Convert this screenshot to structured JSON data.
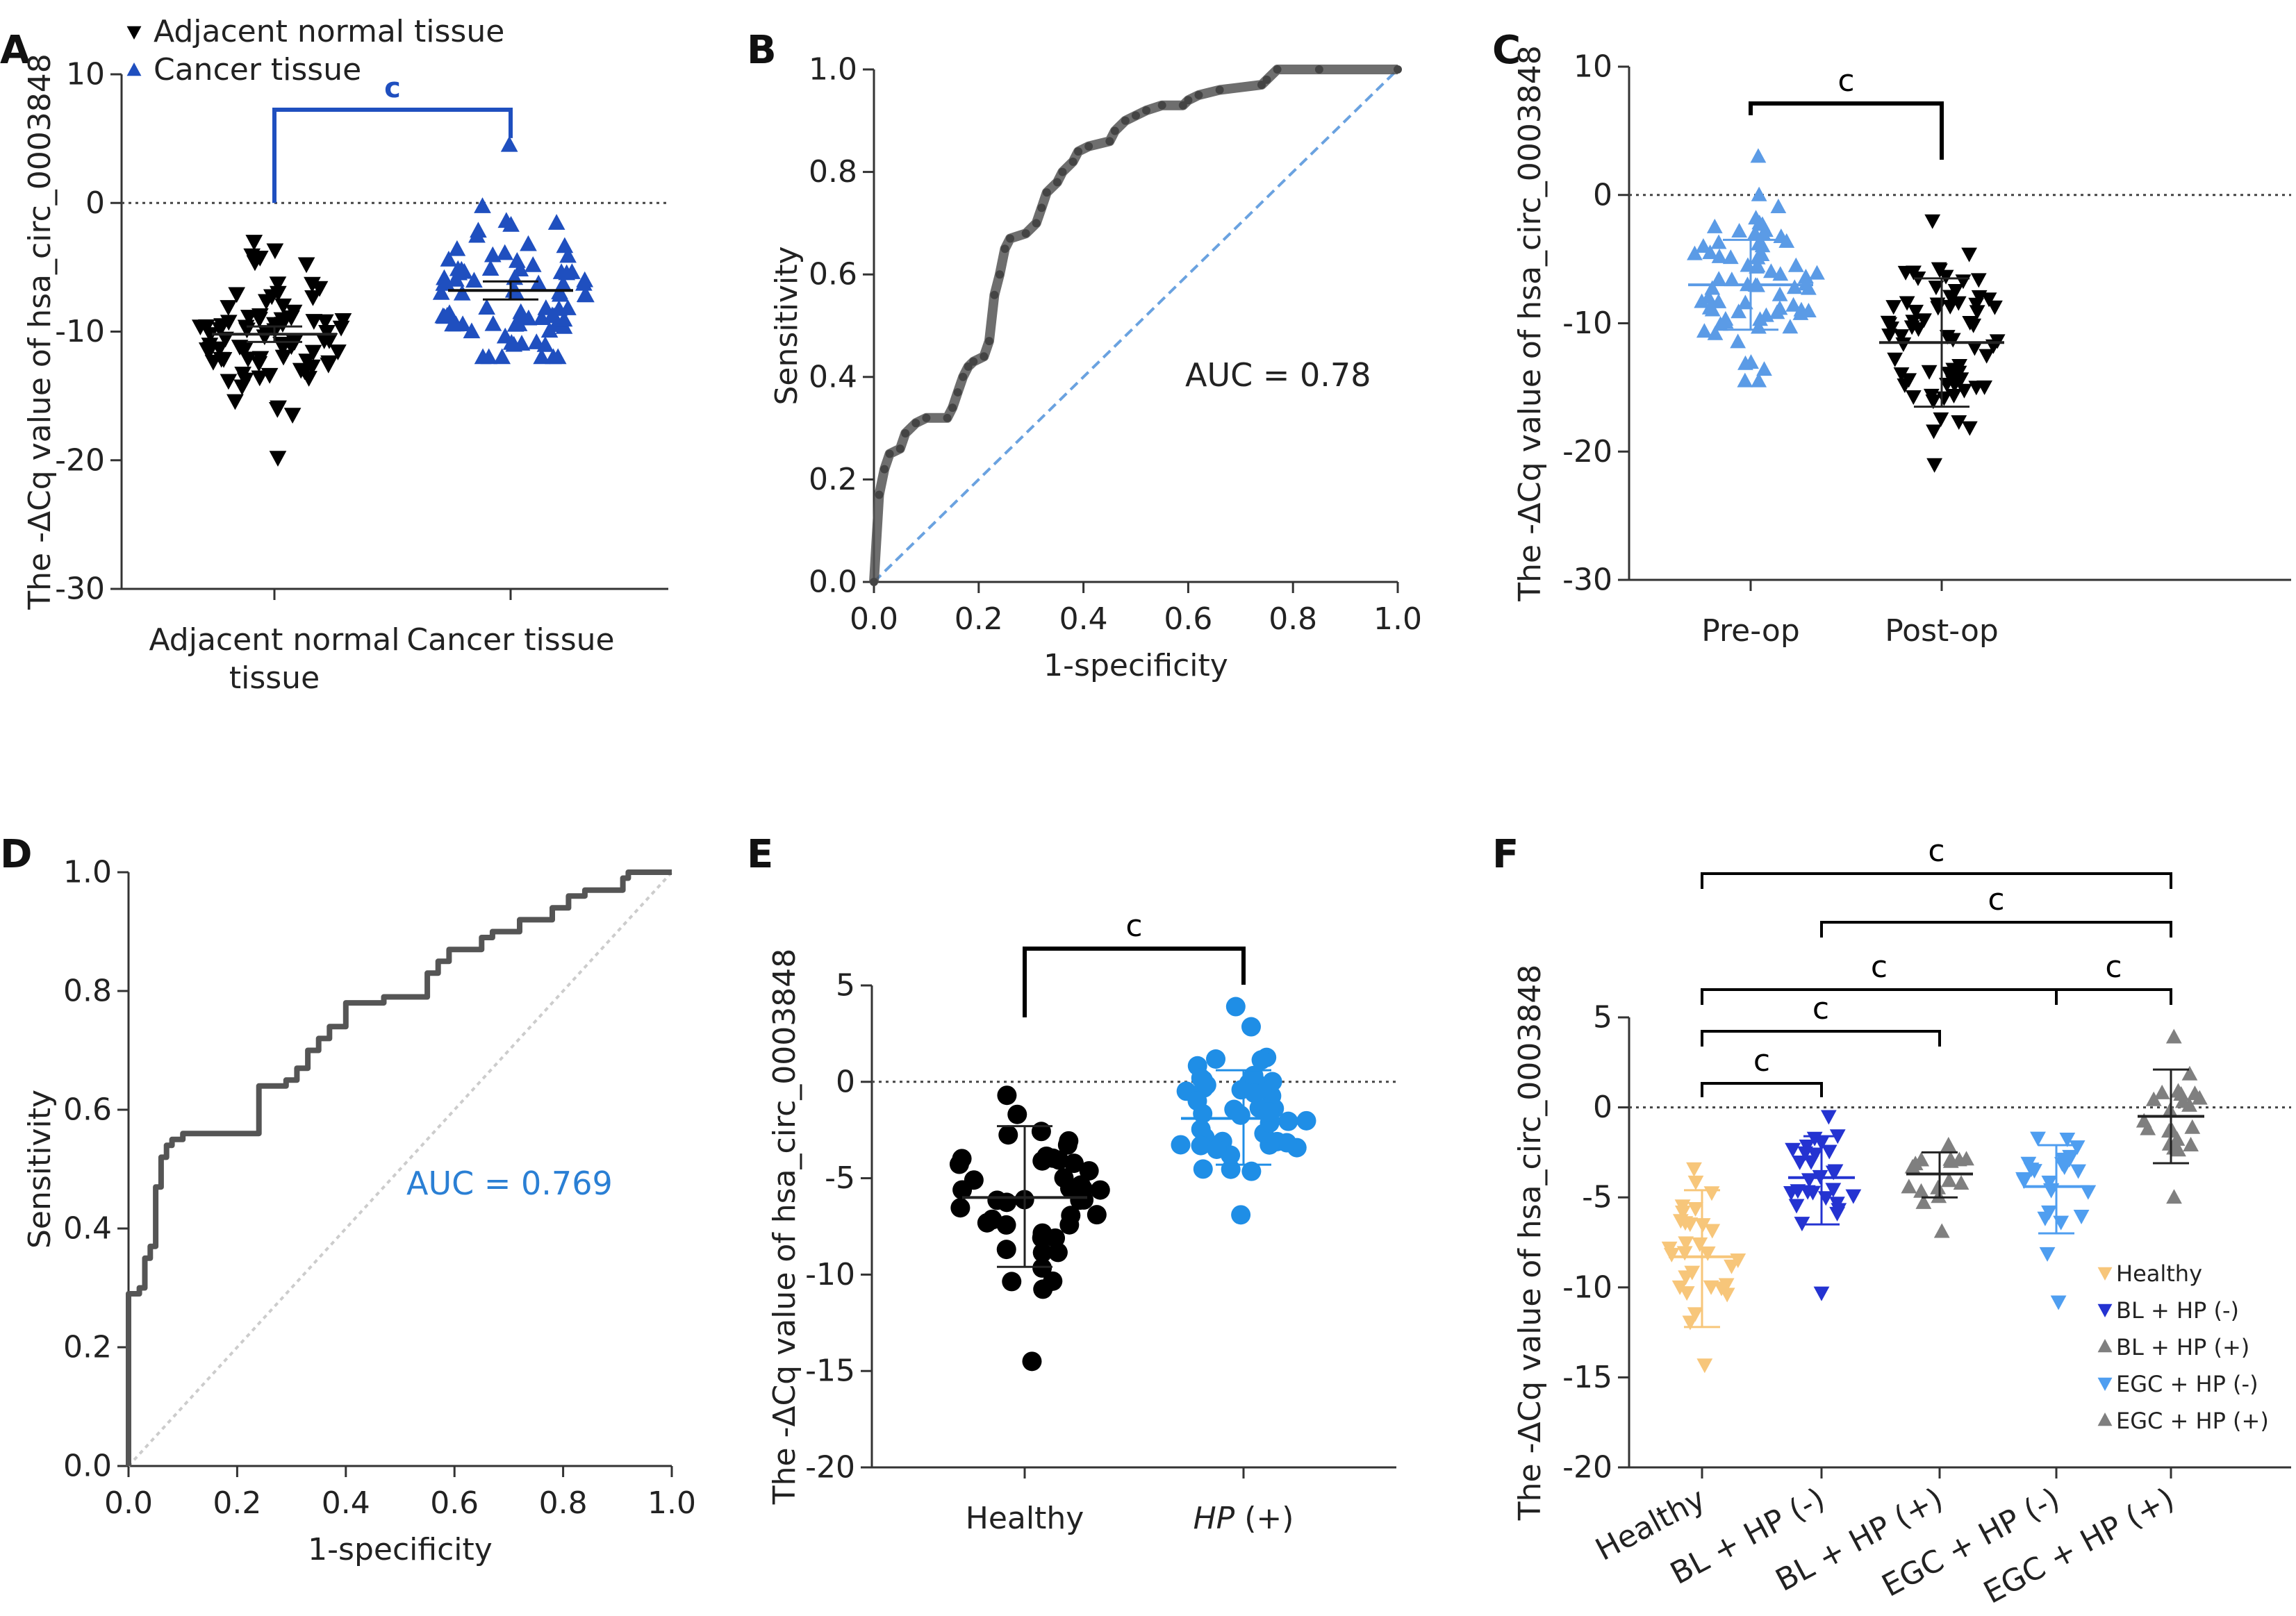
{
  "chart_data": [
    {
      "panel": "A",
      "type": "scatter",
      "subtype": "dot-plot",
      "ylabel": "The -ΔCq value of hsa_circ_0003848",
      "ylim": [
        -30,
        10
      ],
      "yticks": [
        "10",
        "0",
        "-10",
        "-20",
        "-30"
      ],
      "zero_line": "dotted",
      "legend": [
        {
          "label": "Adjacent normal tissue",
          "marker": "triangle-down",
          "color": "#000000"
        },
        {
          "label": "Cancer tissue",
          "marker": "triangle-up",
          "color": "#1f4fbf"
        }
      ],
      "groups": [
        {
          "label_lines": [
            "Adjacent normal",
            "tissue"
          ],
          "marker": "triangle-down",
          "color": "#000000",
          "mean": -10.2,
          "sem_low": -10.8,
          "sem_high": -9.6,
          "min": -19.8,
          "max": -3.0,
          "n": 80
        },
        {
          "label_lines": [
            "Cancer tissue"
          ],
          "marker": "triangle-up",
          "color": "#1f4fbf",
          "mean": -6.8,
          "sem_low": -7.5,
          "sem_high": -6.1,
          "min": -12.0,
          "max": 4.5,
          "n": 80
        }
      ],
      "significance": [
        {
          "from": 0,
          "to": 1,
          "label": "c",
          "color": "#1f4fbf",
          "y": 7.5
        }
      ]
    },
    {
      "panel": "B",
      "type": "line",
      "subtype": "roc",
      "xlabel": "1-specificity",
      "ylabel": "Sensitivity",
      "xlim": [
        0,
        1
      ],
      "ylim": [
        0,
        1
      ],
      "xticks": [
        "0.0",
        "0.2",
        "0.4",
        "0.6",
        "0.8",
        "1.0"
      ],
      "yticks": [
        "0.0",
        "0.2",
        "0.4",
        "0.6",
        "0.8",
        "1.0"
      ],
      "annotation": "AUC = 0.78",
      "annotation_color": "#222222",
      "curve_color": "#555555",
      "diagonal_color": "#6aa2e0",
      "roc_points": [
        [
          0,
          0
        ],
        [
          0.01,
          0.17
        ],
        [
          0.02,
          0.22
        ],
        [
          0.03,
          0.25
        ],
        [
          0.05,
          0.26
        ],
        [
          0.06,
          0.29
        ],
        [
          0.08,
          0.31
        ],
        [
          0.1,
          0.32
        ],
        [
          0.14,
          0.32
        ],
        [
          0.15,
          0.34
        ],
        [
          0.16,
          0.37
        ],
        [
          0.17,
          0.4
        ],
        [
          0.18,
          0.42
        ],
        [
          0.19,
          0.43
        ],
        [
          0.21,
          0.44
        ],
        [
          0.22,
          0.47
        ],
        [
          0.23,
          0.56
        ],
        [
          0.24,
          0.6
        ],
        [
          0.25,
          0.65
        ],
        [
          0.26,
          0.67
        ],
        [
          0.29,
          0.68
        ],
        [
          0.31,
          0.7
        ],
        [
          0.32,
          0.73
        ],
        [
          0.33,
          0.76
        ],
        [
          0.35,
          0.78
        ],
        [
          0.36,
          0.8
        ],
        [
          0.38,
          0.82
        ],
        [
          0.39,
          0.84
        ],
        [
          0.41,
          0.85
        ],
        [
          0.45,
          0.86
        ],
        [
          0.46,
          0.88
        ],
        [
          0.48,
          0.9
        ],
        [
          0.5,
          0.91
        ],
        [
          0.52,
          0.92
        ],
        [
          0.55,
          0.93
        ],
        [
          0.59,
          0.93
        ],
        [
          0.6,
          0.94
        ],
        [
          0.62,
          0.95
        ],
        [
          0.66,
          0.96
        ],
        [
          0.74,
          0.97
        ],
        [
          0.75,
          0.98
        ],
        [
          0.77,
          1.0
        ],
        [
          0.85,
          1.0
        ],
        [
          1.0,
          1.0
        ]
      ]
    },
    {
      "panel": "C",
      "type": "scatter",
      "subtype": "dot-plot",
      "ylabel": "The -ΔCq value of hsa_circ_0003848",
      "ylim": [
        -30,
        10
      ],
      "yticks": [
        "10",
        "0",
        "-10",
        "-20",
        "-30"
      ],
      "zero_line": "dotted",
      "groups": [
        {
          "label_lines": [
            "Pre-op"
          ],
          "marker": "triangle-up",
          "color": "#5b9be6",
          "mean": -7.0,
          "sem_low": -10.5,
          "sem_high": -3.5,
          "min": -14.5,
          "max": 3.0,
          "n": 70
        },
        {
          "label_lines": [
            "Post-op"
          ],
          "marker": "triangle-down",
          "color": "#000000",
          "mean": -11.5,
          "sem_low": -16.5,
          "sem_high": -6.5,
          "min": -21.0,
          "max": -2.0,
          "n": 70
        }
      ],
      "significance": [
        {
          "from": 0,
          "to": 1,
          "label": "c",
          "color": "#000000",
          "y": 7.0
        }
      ]
    },
    {
      "panel": "D",
      "type": "line",
      "subtype": "roc",
      "xlabel": "1-specificity",
      "ylabel": "Sensitivity",
      "xlim": [
        0,
        1
      ],
      "ylim": [
        0,
        1
      ],
      "xticks": [
        "0.0",
        "0.2",
        "0.4",
        "0.6",
        "0.8",
        "1.0"
      ],
      "yticks": [
        "0.0",
        "0.2",
        "0.4",
        "0.6",
        "0.8",
        "1.0"
      ],
      "annotation": "AUC = 0.769",
      "annotation_color": "#2a7fd4",
      "curve_color": "#555555",
      "diagonal_color": "#cccccc",
      "roc_points": [
        [
          0,
          0
        ],
        [
          0,
          0.29
        ],
        [
          0.02,
          0.29
        ],
        [
          0.02,
          0.3
        ],
        [
          0.03,
          0.3
        ],
        [
          0.03,
          0.35
        ],
        [
          0.04,
          0.35
        ],
        [
          0.04,
          0.37
        ],
        [
          0.05,
          0.37
        ],
        [
          0.05,
          0.47
        ],
        [
          0.06,
          0.47
        ],
        [
          0.06,
          0.52
        ],
        [
          0.07,
          0.52
        ],
        [
          0.07,
          0.54
        ],
        [
          0.08,
          0.54
        ],
        [
          0.08,
          0.55
        ],
        [
          0.1,
          0.55
        ],
        [
          0.1,
          0.56
        ],
        [
          0.24,
          0.56
        ],
        [
          0.24,
          0.64
        ],
        [
          0.29,
          0.64
        ],
        [
          0.29,
          0.65
        ],
        [
          0.31,
          0.65
        ],
        [
          0.31,
          0.67
        ],
        [
          0.33,
          0.67
        ],
        [
          0.33,
          0.7
        ],
        [
          0.35,
          0.7
        ],
        [
          0.35,
          0.72
        ],
        [
          0.37,
          0.72
        ],
        [
          0.37,
          0.74
        ],
        [
          0.4,
          0.74
        ],
        [
          0.4,
          0.78
        ],
        [
          0.47,
          0.78
        ],
        [
          0.47,
          0.79
        ],
        [
          0.55,
          0.79
        ],
        [
          0.55,
          0.83
        ],
        [
          0.57,
          0.83
        ],
        [
          0.57,
          0.85
        ],
        [
          0.59,
          0.85
        ],
        [
          0.59,
          0.87
        ],
        [
          0.65,
          0.87
        ],
        [
          0.65,
          0.89
        ],
        [
          0.67,
          0.89
        ],
        [
          0.67,
          0.9
        ],
        [
          0.72,
          0.9
        ],
        [
          0.72,
          0.92
        ],
        [
          0.78,
          0.92
        ],
        [
          0.78,
          0.94
        ],
        [
          0.81,
          0.94
        ],
        [
          0.81,
          0.96
        ],
        [
          0.84,
          0.96
        ],
        [
          0.84,
          0.97
        ],
        [
          0.91,
          0.97
        ],
        [
          0.91,
          0.99
        ],
        [
          0.92,
          0.99
        ],
        [
          0.92,
          1.0
        ],
        [
          1.0,
          1.0
        ]
      ]
    },
    {
      "panel": "E",
      "type": "scatter",
      "subtype": "dot-plot",
      "ylabel": "The -ΔCq value of hsa_circ_0003848",
      "ylim": [
        -20,
        5
      ],
      "yticks": [
        "5",
        "0",
        "-5",
        "-10",
        "-15",
        "-20"
      ],
      "zero_line": "dotted",
      "groups": [
        {
          "label_lines": [
            "Healthy"
          ],
          "marker": "circle",
          "color": "#000000",
          "mean": -6.0,
          "sem_low": -9.6,
          "sem_high": -2.3,
          "min": -14.5,
          "max": -0.7,
          "n": 45
        },
        {
          "label_lines": [
            "HP (+)"
          ],
          "italic_prefix": "HP",
          "marker": "circle",
          "color": "#1f8ee6",
          "mean": -1.9,
          "sem_low": -4.3,
          "sem_high": 0.6,
          "min": -6.9,
          "max": 3.9,
          "n": 45
        }
      ],
      "significance": [
        {
          "from": 0,
          "to": 1,
          "label": "c",
          "color": "#000000",
          "y": 3.4
        }
      ]
    },
    {
      "panel": "F",
      "type": "scatter",
      "subtype": "dot-plot",
      "ylabel": "The -ΔCq value of hsa_circ_0003848",
      "ylim": [
        -20,
        5
      ],
      "yticks": [
        "5",
        "0",
        "-5",
        "-10",
        "-15",
        "-20"
      ],
      "zero_line": "dotted",
      "legend": [
        {
          "label": "Healthy",
          "marker": "triangle-down",
          "color": "#f7c67a"
        },
        {
          "label": "BL + HP (-)",
          "marker": "triangle-down",
          "color": "#2433d1"
        },
        {
          "label": "BL + HP (+)",
          "marker": "triangle-up",
          "color": "#7f7f7f"
        },
        {
          "label": "EGC + HP (-)",
          "marker": "triangle-down",
          "color": "#4f9ef0"
        },
        {
          "label": "EGC + HP (+)",
          "marker": "triangle-up",
          "color": "#7f7f7f"
        }
      ],
      "groups": [
        {
          "label_lines": [
            "Healthy"
          ],
          "marker": "triangle-down",
          "color": "#f7c67a",
          "mean": -8.3,
          "sem_low": -12.2,
          "sem_high": -4.6,
          "min": -14.3,
          "max": -3.4,
          "n": 30
        },
        {
          "label_lines": [
            "BL + HP (-)"
          ],
          "marker": "triangle-down",
          "color": "#2433d1",
          "mean": -3.9,
          "sem_low": -6.5,
          "sem_high": -1.6,
          "min": -10.3,
          "max": -0.5,
          "n": 28
        },
        {
          "label_lines": [
            "BL + HP (+)"
          ],
          "marker": "triangle-up",
          "color": "#7f7f7f",
          "mean": -3.7,
          "sem_low": -5.0,
          "sem_high": -2.5,
          "min": -6.9,
          "max": -2.1,
          "n": 16
        },
        {
          "label_lines": [
            "EGC + HP (-)"
          ],
          "marker": "triangle-down",
          "color": "#4f9ef0",
          "mean": -4.4,
          "sem_low": -7.0,
          "sem_high": -2.1,
          "min": -10.8,
          "max": -1.7,
          "n": 24
        },
        {
          "label_lines": [
            "EGC + HP (+)"
          ],
          "marker": "triangle-up",
          "color": "#7f7f7f",
          "mean": -0.5,
          "sem_low": -3.1,
          "sem_high": 2.1,
          "min": -5.0,
          "max": 3.9,
          "n": 22
        }
      ],
      "significance": [
        {
          "from": 0,
          "to": 4,
          "label": "c",
          "color": "#000000",
          "level": 5
        },
        {
          "from": 1,
          "to": 4,
          "label": "c",
          "color": "#000000",
          "level": 4
        },
        {
          "from": 0,
          "to": 3,
          "label": "c",
          "color": "#000000",
          "level": 3
        },
        {
          "from": 3,
          "to": 4,
          "label": "c",
          "color": "#000000",
          "level": 3
        },
        {
          "from": 0,
          "to": 2,
          "label": "c",
          "color": "#000000",
          "level": 2
        },
        {
          "from": 0,
          "to": 1,
          "label": "c",
          "color": "#000000",
          "level": 1
        }
      ]
    }
  ]
}
